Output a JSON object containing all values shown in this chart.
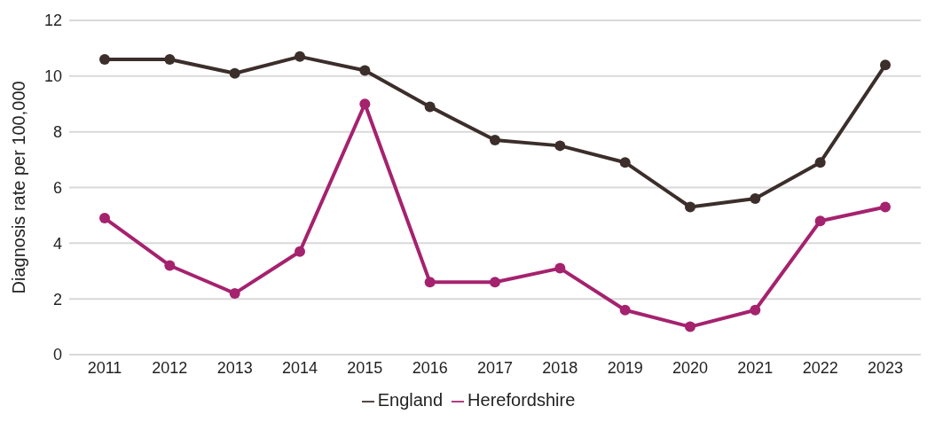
{
  "chart_data": {
    "type": "line",
    "ylabel": "Diagnosis rate per 100,000",
    "categories": [
      "2011",
      "2012",
      "2013",
      "2014",
      "2015",
      "2016",
      "2017",
      "2018",
      "2019",
      "2020",
      "2021",
      "2022",
      "2023"
    ],
    "series": [
      {
        "name": "Herefordshire",
        "color": "#a5226e",
        "values": [
          4.9,
          3.2,
          2.2,
          3.7,
          9.0,
          2.6,
          2.6,
          3.1,
          1.6,
          1.0,
          1.6,
          4.8,
          5.3
        ]
      },
      {
        "name": "England",
        "color": "#3b2e2b",
        "values": [
          10.6,
          10.6,
          10.1,
          10.7,
          10.2,
          8.9,
          7.7,
          7.5,
          6.9,
          5.3,
          5.6,
          6.9,
          10.4
        ]
      }
    ],
    "ylim": [
      0,
      12
    ],
    "yticks": [
      0,
      2,
      4,
      6,
      8,
      10,
      12
    ],
    "grid": "y",
    "legend": "bottom",
    "marker": "circle",
    "line_style": "solid"
  }
}
